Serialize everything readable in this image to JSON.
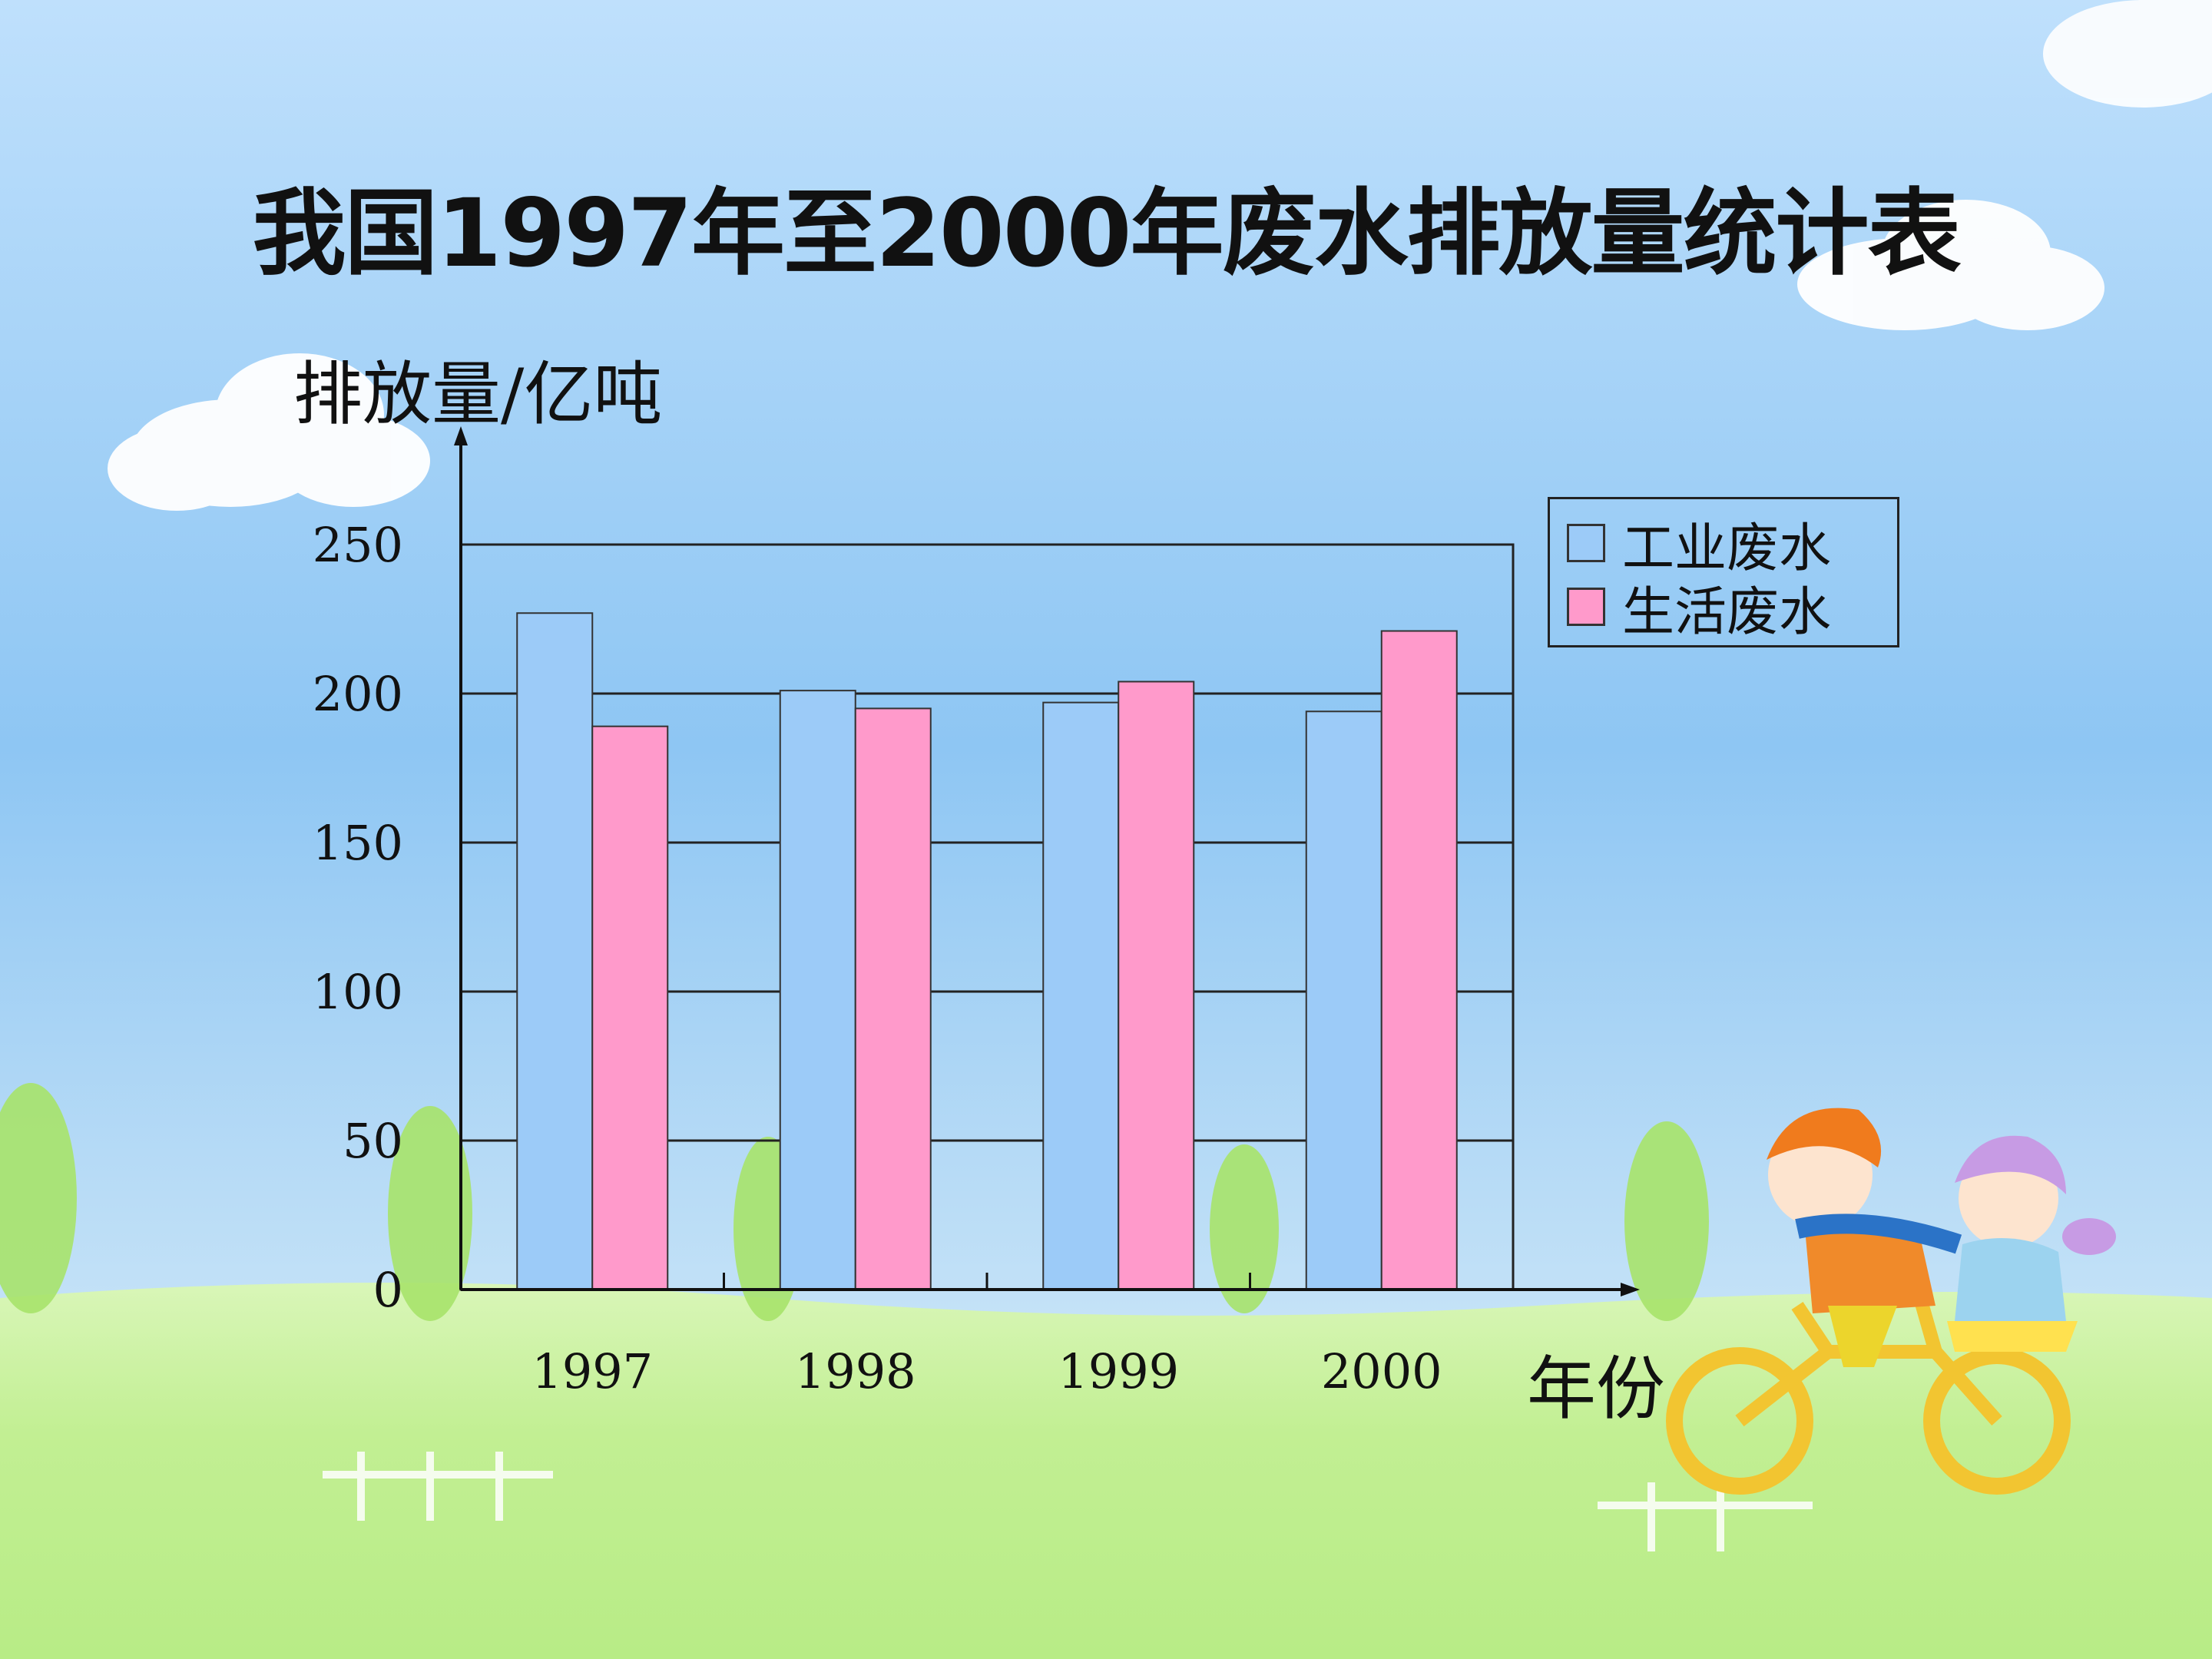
{
  "title": "我国1997年至2000年废水排放量统计表",
  "colors": {
    "industrial": "#9ccbf8",
    "domestic": "#ff9acb",
    "sky_top": "#b8dcfb",
    "grass": "#c7f199"
  },
  "chart_data": {
    "type": "bar",
    "title": "我国1997年至2000年废水排放量统计表",
    "xlabel": "年份",
    "ylabel": "排放量/亿吨",
    "categories": [
      "1997",
      "1998",
      "1999",
      "2000"
    ],
    "yticks": [
      "0",
      "50",
      "100",
      "150",
      "200",
      "250"
    ],
    "ylim": [
      0,
      250
    ],
    "grid": true,
    "legend_position": "top-right",
    "series": [
      {
        "name": "工业废水",
        "color": "#9ccbf8",
        "values": [
          227,
          201,
          197,
          194
        ]
      },
      {
        "name": "生活废水",
        "color": "#ff9acb",
        "values": [
          189,
          195,
          204,
          221
        ]
      }
    ]
  }
}
